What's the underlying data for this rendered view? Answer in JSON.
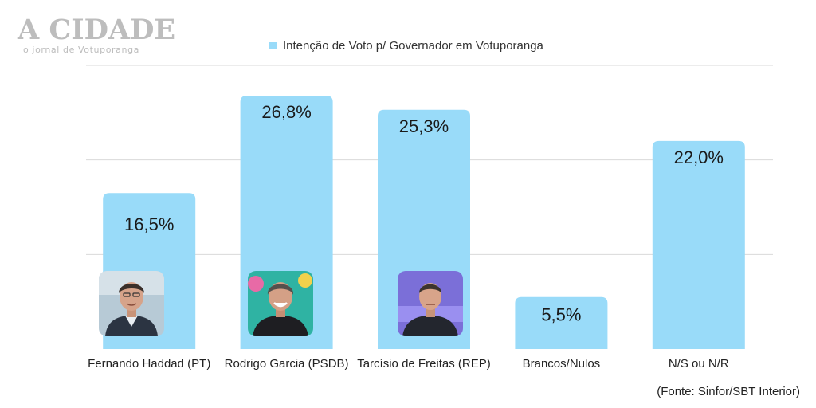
{
  "logo": {
    "title": "A CIDADE",
    "subtitle": "o jornal de Votuporanga"
  },
  "source": "(Fonte: Sinfor/SBT Interior)",
  "colors": {
    "bar": "#99dbf9",
    "grid": "#d9d9d9",
    "axis_text": "#222222"
  },
  "chart_data": {
    "type": "bar",
    "categories": [
      "Fernando Haddad (PT)",
      "Rodrigo Garcia (PSDB)",
      "Tarcísio de Freitas (REP)",
      "Brancos/Nulos",
      "N/S ou N/R"
    ],
    "series": [
      {
        "name": "Intenção de Voto p/ Governador em Votuporanga",
        "values": [
          16.5,
          26.8,
          25.3,
          5.5,
          22.0
        ]
      }
    ],
    "data_labels": [
      "16,5%",
      "26,8%",
      "25,3%",
      "5,5%",
      "22,0%"
    ],
    "title": "",
    "xlabel": "",
    "ylabel": "",
    "ylim": [
      0,
      30
    ],
    "grid": true,
    "legend_position": "top-center",
    "candidate_photos": [
      "haddad-photo",
      "garcia-photo",
      "tarcisio-photo"
    ]
  }
}
